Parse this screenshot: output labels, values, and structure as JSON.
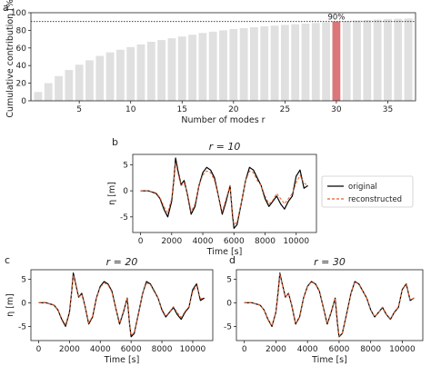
{
  "chart_data": [
    {
      "id": "a",
      "type": "bar",
      "panel_label": "a",
      "title": "",
      "xlabel": "Number of modes r",
      "ylabel": "Cumulative contribution [%]",
      "xlim": [
        0.3,
        37.7
      ],
      "ylim": [
        0,
        100
      ],
      "xticks": [
        5,
        10,
        15,
        20,
        25,
        30,
        35
      ],
      "yticks": [
        0,
        20,
        40,
        60,
        80,
        100
      ],
      "categories": [
        1,
        2,
        3,
        4,
        5,
        6,
        7,
        8,
        9,
        10,
        11,
        12,
        13,
        14,
        15,
        16,
        17,
        18,
        19,
        20,
        21,
        22,
        23,
        24,
        25,
        26,
        27,
        28,
        29,
        30,
        31,
        32,
        33,
        34,
        35,
        36,
        37
      ],
      "values": [
        10,
        20,
        28,
        35,
        41,
        46,
        51,
        55,
        58,
        61,
        64,
        67,
        69,
        71,
        73,
        75,
        77,
        78.5,
        80,
        81.5,
        82.5,
        83.5,
        84.5,
        85.3,
        86.1,
        86.9,
        87.6,
        88.3,
        89,
        90,
        90.6,
        91.2,
        91.7,
        92.2,
        92.7,
        93.1,
        93.5
      ],
      "bar_color": "#e0e0e0",
      "highlight": {
        "category": 30,
        "color": "#d9777b"
      },
      "reference_line": {
        "value": 90,
        "label": "90%",
        "style": "dotted"
      }
    },
    {
      "id": "b",
      "type": "line",
      "panel_label": "b",
      "title": "r = 10",
      "xlabel": "Time [s]",
      "ylabel": "η [m]",
      "xlim": [
        -500,
        11300
      ],
      "ylim": [
        -8,
        7
      ],
      "xticks": [
        0,
        2000,
        4000,
        6000,
        8000,
        10000
      ],
      "yticks": [
        -5,
        0,
        5
      ],
      "legend": {
        "position": "right",
        "entries": [
          "original",
          "reconstructed"
        ]
      },
      "x": [
        0,
        500,
        1000,
        1250,
        1500,
        1750,
        2000,
        2150,
        2250,
        2400,
        2600,
        2800,
        3000,
        3250,
        3500,
        3750,
        4000,
        4250,
        4500,
        4750,
        5000,
        5250,
        5500,
        5750,
        5900,
        6000,
        6200,
        6500,
        6750,
        7000,
        7250,
        7500,
        7750,
        8000,
        8250,
        8500,
        8750,
        9000,
        9250,
        9500,
        9750,
        10000,
        10250,
        10500,
        10750
      ],
      "series": [
        {
          "name": "original",
          "color": "#000000",
          "dash": "",
          "values": [
            0,
            0,
            -0.5,
            -1.5,
            -3.5,
            -5.0,
            -2.0,
            2.5,
            6.3,
            4.0,
            1.2,
            2.0,
            -0.5,
            -4.5,
            -3.0,
            1.0,
            3.5,
            4.5,
            4.0,
            2.5,
            -1.0,
            -4.5,
            -2.0,
            1.0,
            -4.5,
            -7.2,
            -6.5,
            -2.0,
            2.0,
            4.5,
            4.0,
            2.5,
            1.0,
            -1.5,
            -3.0,
            -2.0,
            -1.0,
            -2.5,
            -3.5,
            -2.0,
            -1.0,
            2.8,
            4.0,
            0.5,
            1.0
          ]
        },
        {
          "name": "reconstructed",
          "color": "#e8602c",
          "dash": "3,2",
          "values": [
            0,
            0,
            -0.4,
            -1.3,
            -3.0,
            -4.2,
            -1.5,
            2.5,
            5.5,
            3.5,
            1.0,
            1.5,
            -0.3,
            -4.0,
            -2.5,
            1.0,
            3.0,
            3.8,
            3.5,
            2.0,
            -1.0,
            -4.0,
            -1.5,
            1.0,
            -4.0,
            -6.5,
            -6.0,
            -2.0,
            2.0,
            3.8,
            3.5,
            2.0,
            1.0,
            -1.0,
            -2.5,
            -1.8,
            -0.5,
            -1.5,
            -2.5,
            -1.5,
            -0.5,
            1.5,
            3.0,
            1.5,
            1.0
          ]
        }
      ]
    },
    {
      "id": "c",
      "type": "line",
      "panel_label": "c",
      "title": "r = 20",
      "xlabel": "Time [s]",
      "ylabel": "η [m]",
      "xlim": [
        -500,
        11300
      ],
      "ylim": [
        -8,
        7
      ],
      "xticks": [
        0,
        2000,
        4000,
        6000,
        8000,
        10000
      ],
      "yticks": [
        -5,
        0,
        5
      ],
      "x": [
        0,
        500,
        1000,
        1250,
        1500,
        1750,
        2000,
        2150,
        2250,
        2400,
        2600,
        2800,
        3000,
        3250,
        3500,
        3750,
        4000,
        4250,
        4500,
        4750,
        5000,
        5250,
        5500,
        5750,
        5900,
        6000,
        6200,
        6500,
        6750,
        7000,
        7250,
        7500,
        7750,
        8000,
        8250,
        8500,
        8750,
        9000,
        9250,
        9500,
        9750,
        10000,
        10250,
        10500,
        10750
      ],
      "series": [
        {
          "name": "original",
          "color": "#000000",
          "dash": "",
          "values": [
            0,
            0,
            -0.5,
            -1.5,
            -3.5,
            -5.0,
            -2.0,
            2.5,
            6.3,
            4.0,
            1.2,
            2.0,
            -0.5,
            -4.5,
            -3.0,
            1.0,
            3.5,
            4.5,
            4.0,
            2.5,
            -1.0,
            -4.5,
            -2.0,
            1.0,
            -4.5,
            -7.2,
            -6.5,
            -2.0,
            2.0,
            4.5,
            4.0,
            2.5,
            1.0,
            -1.5,
            -3.0,
            -2.0,
            -1.0,
            -2.5,
            -3.5,
            -2.0,
            -1.0,
            2.8,
            4.0,
            0.5,
            1.0
          ]
        },
        {
          "name": "reconstructed",
          "color": "#e8602c",
          "dash": "3,2",
          "values": [
            0,
            0,
            -0.5,
            -1.4,
            -3.3,
            -4.7,
            -1.8,
            2.5,
            5.9,
            3.8,
            1.1,
            1.8,
            -0.4,
            -4.3,
            -2.8,
            1.0,
            3.3,
            4.2,
            3.8,
            2.3,
            -1.0,
            -4.3,
            -1.8,
            1.0,
            -4.3,
            -6.9,
            -6.3,
            -2.0,
            2.0,
            4.2,
            3.8,
            2.3,
            1.0,
            -1.3,
            -2.8,
            -1.9,
            -0.8,
            -2.1,
            -3.1,
            -1.8,
            -0.8,
            2.3,
            3.6,
            0.9,
            1.0
          ]
        }
      ]
    },
    {
      "id": "d",
      "type": "line",
      "panel_label": "d",
      "title": "r = 30",
      "xlabel": "Time [s]",
      "ylabel": "",
      "xlim": [
        -500,
        11300
      ],
      "ylim": [
        -8,
        7
      ],
      "xticks": [
        0,
        2000,
        4000,
        6000,
        8000,
        10000
      ],
      "yticks": [
        -5,
        0,
        5
      ],
      "x": [
        0,
        500,
        1000,
        1250,
        1500,
        1750,
        2000,
        2150,
        2250,
        2400,
        2600,
        2800,
        3000,
        3250,
        3500,
        3750,
        4000,
        4250,
        4500,
        4750,
        5000,
        5250,
        5500,
        5750,
        5900,
        6000,
        6200,
        6500,
        6750,
        7000,
        7250,
        7500,
        7750,
        8000,
        8250,
        8500,
        8750,
        9000,
        9250,
        9500,
        9750,
        10000,
        10250,
        10500,
        10750
      ],
      "series": [
        {
          "name": "original",
          "color": "#000000",
          "dash": "",
          "values": [
            0,
            0,
            -0.5,
            -1.5,
            -3.5,
            -5.0,
            -2.0,
            2.5,
            6.3,
            4.0,
            1.2,
            2.0,
            -0.5,
            -4.5,
            -3.0,
            1.0,
            3.5,
            4.5,
            4.0,
            2.5,
            -1.0,
            -4.5,
            -2.0,
            1.0,
            -4.5,
            -7.2,
            -6.5,
            -2.0,
            2.0,
            4.5,
            4.0,
            2.5,
            1.0,
            -1.5,
            -3.0,
            -2.0,
            -1.0,
            -2.5,
            -3.5,
            -2.0,
            -1.0,
            2.8,
            4.0,
            0.5,
            1.0
          ]
        },
        {
          "name": "reconstructed",
          "color": "#e8602c",
          "dash": "3,2",
          "values": [
            0,
            0,
            -0.5,
            -1.5,
            -3.4,
            -4.9,
            -1.9,
            2.5,
            6.2,
            3.9,
            1.2,
            2.0,
            -0.5,
            -4.4,
            -2.9,
            1.0,
            3.4,
            4.4,
            3.9,
            2.4,
            -1.0,
            -4.4,
            -1.9,
            1.0,
            -4.4,
            -7.1,
            -6.4,
            -2.0,
            2.0,
            4.4,
            3.9,
            2.4,
            1.0,
            -1.4,
            -2.9,
            -2.0,
            -0.9,
            -2.4,
            -3.4,
            -1.9,
            -0.9,
            2.7,
            3.9,
            0.6,
            1.0
          ]
        }
      ]
    }
  ]
}
